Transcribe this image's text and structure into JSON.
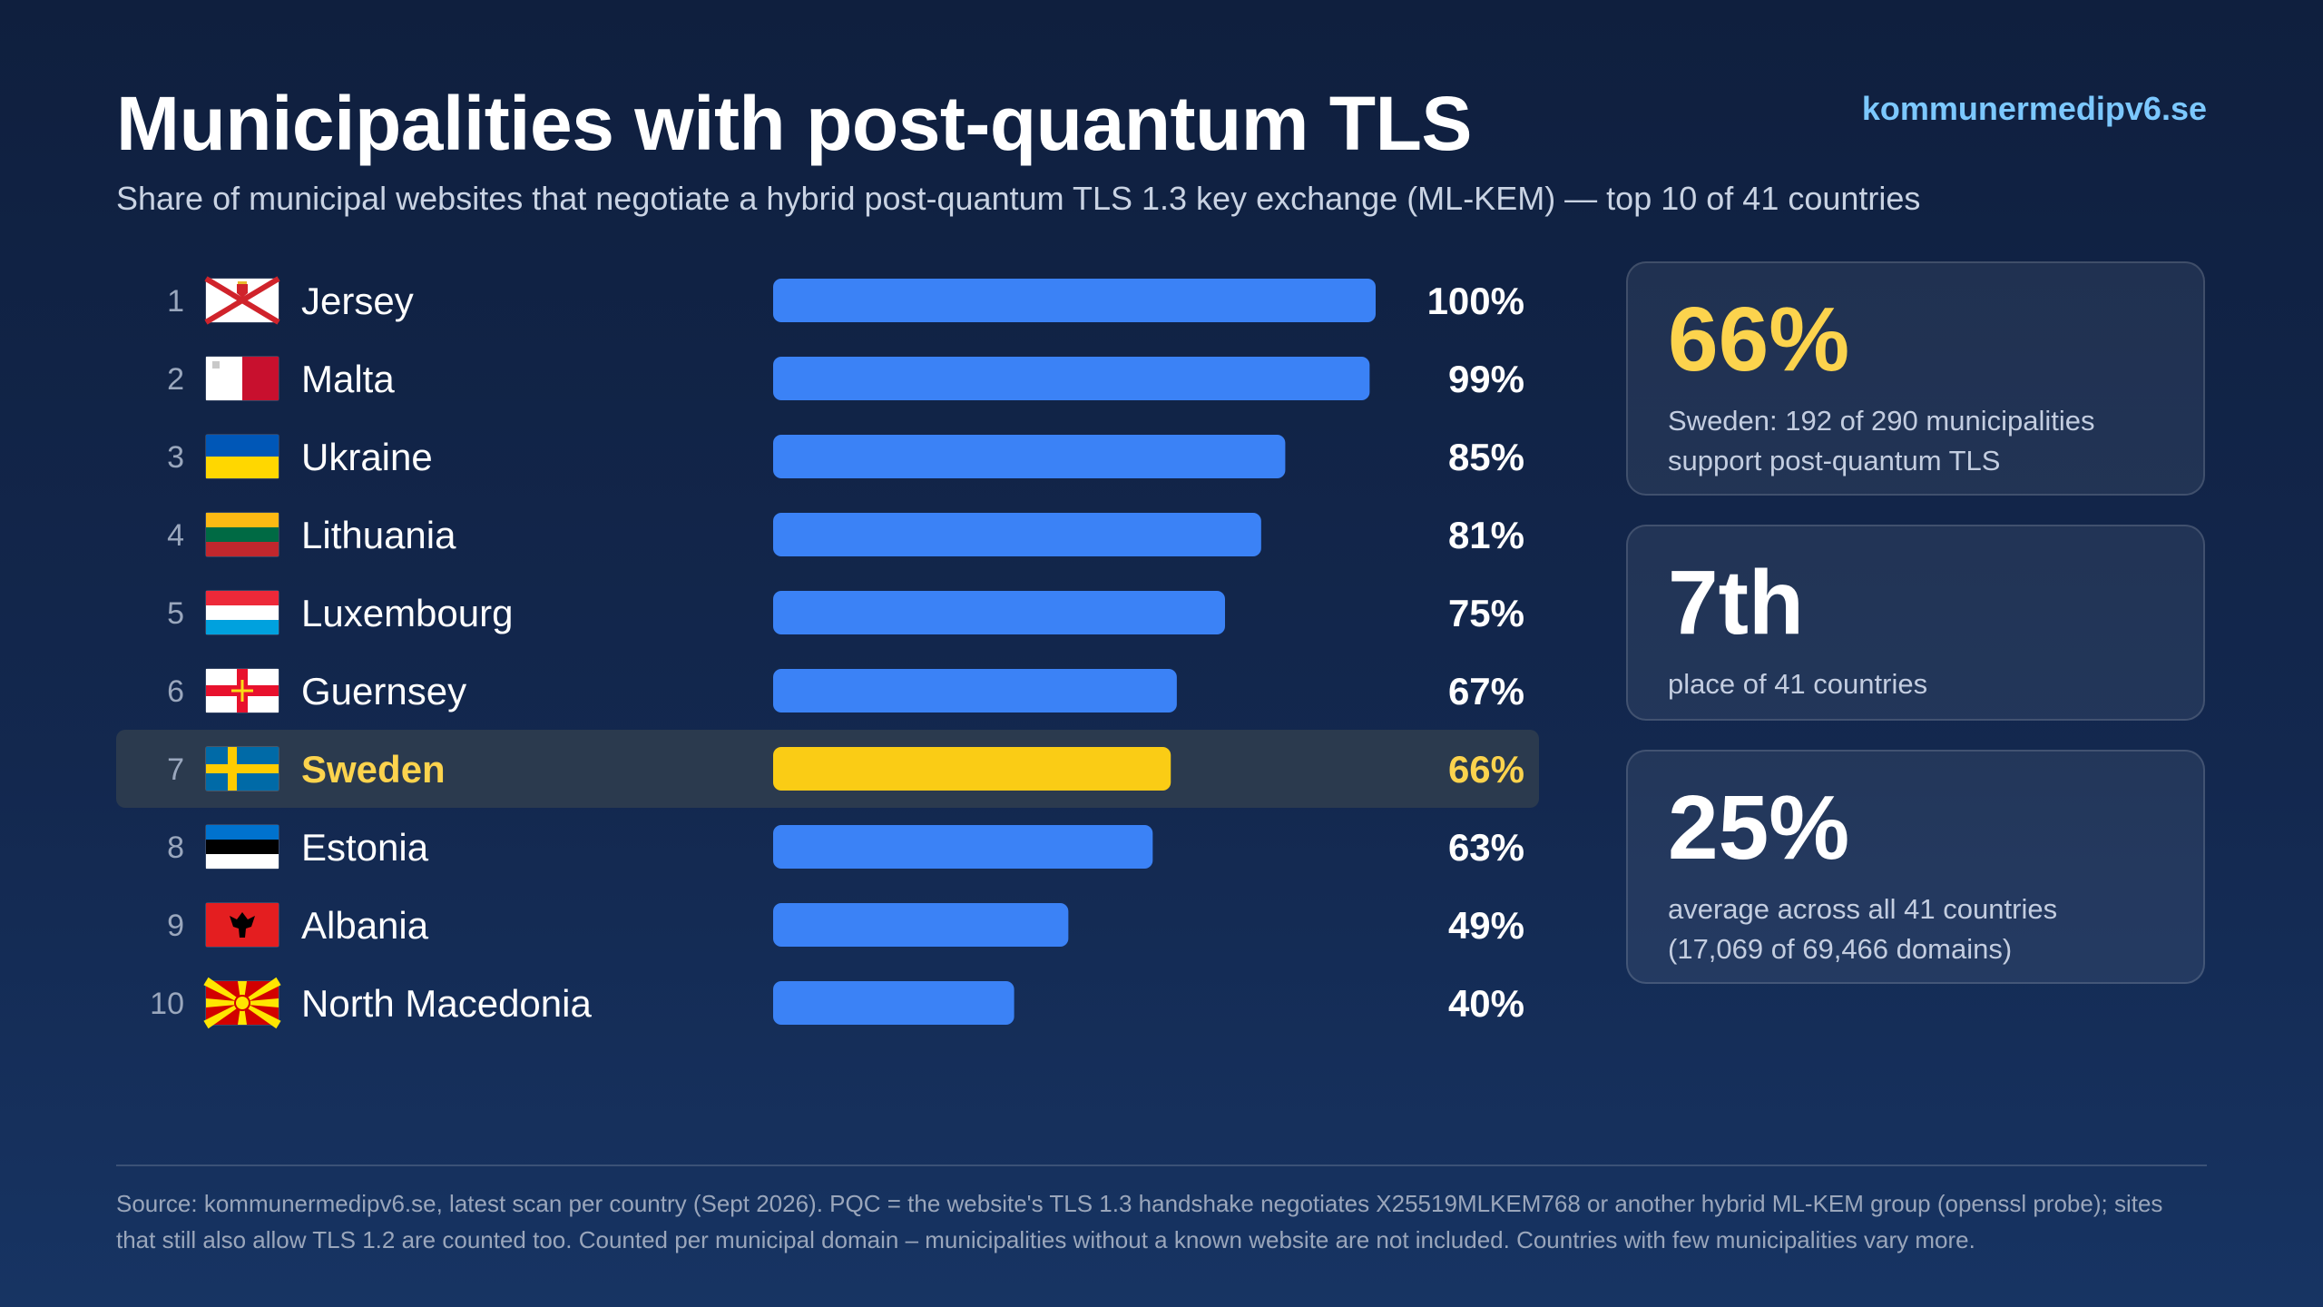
{
  "header": {
    "title": "Municipalities with post-quantum TLS",
    "site": "kommunermedipv6.se",
    "subtitle": "Share of municipal websites that negotiate a hybrid post-quantum TLS 1.3 key exchange (ML-KEM) — top 10 of 41 countries"
  },
  "chart_data": {
    "type": "bar",
    "orientation": "horizontal",
    "highlight": "Sweden",
    "xlim": [
      0,
      100
    ],
    "colors": {
      "bar": "#3b82f6",
      "highlight": "#facc15",
      "highlight_row": "#2b3a4e"
    },
    "rows": [
      {
        "rank": "1",
        "country": "Jersey",
        "value": 100,
        "label": "100%",
        "flag": "jersey-flag-icon"
      },
      {
        "rank": "2",
        "country": "Malta",
        "value": 99,
        "label": "99%",
        "flag": "malta-flag-icon"
      },
      {
        "rank": "3",
        "country": "Ukraine",
        "value": 85,
        "label": "85%",
        "flag": "ukraine-flag-icon"
      },
      {
        "rank": "4",
        "country": "Lithuania",
        "value": 81,
        "label": "81%",
        "flag": "lithuania-flag-icon"
      },
      {
        "rank": "5",
        "country": "Luxembourg",
        "value": 75,
        "label": "75%",
        "flag": "luxembourg-flag-icon"
      },
      {
        "rank": "6",
        "country": "Guernsey",
        "value": 67,
        "label": "67%",
        "flag": "guernsey-flag-icon"
      },
      {
        "rank": "7",
        "country": "Sweden",
        "value": 66,
        "label": "66%",
        "flag": "sweden-flag-icon"
      },
      {
        "rank": "8",
        "country": "Estonia",
        "value": 63,
        "label": "63%",
        "flag": "estonia-flag-icon"
      },
      {
        "rank": "9",
        "country": "Albania",
        "value": 49,
        "label": "49%",
        "flag": "albania-flag-icon"
      },
      {
        "rank": "10",
        "country": "North Macedonia",
        "value": 40,
        "label": "40%",
        "flag": "north-macedonia-flag-icon"
      }
    ]
  },
  "cards": [
    {
      "big": "66%",
      "desc_line1": "Sweden: 192 of 290 municipalities",
      "desc_line2": "support post-quantum TLS"
    },
    {
      "big": "7th",
      "desc_line1": "place of 41 countries"
    },
    {
      "big": "25%",
      "desc_line1": "average across all 41 countries",
      "desc_line2": "(17,069 of 69,466 domains)"
    }
  ],
  "footer": {
    "line1": "Source: kommunermedipv6.se, latest scan per country (Sept 2026). PQC = the website's TLS 1.3 handshake negotiates X25519MLKEM768 or another hybrid ML-KEM group (openssl probe); sites",
    "line2": "that still also allow TLS 1.2 are counted too. Counted per municipal domain – municipalities without a known website are not included. Countries with few municipalities vary more."
  }
}
